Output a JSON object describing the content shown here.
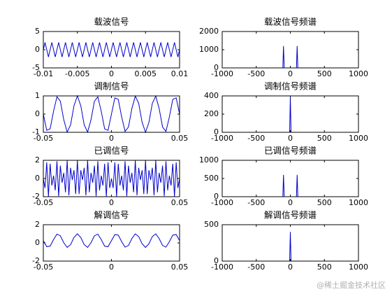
{
  "chart_data": [
    {
      "type": "line",
      "title": "载波信号",
      "color": "#0000cc",
      "xlim": [
        -0.01,
        0.01
      ],
      "xticks": [
        -0.01,
        -0.005,
        0,
        0.005,
        0.01
      ],
      "ylim": [
        -5,
        5
      ],
      "yticks": [
        -5,
        0,
        5
      ],
      "x": [
        -0.01,
        -0.00975,
        -0.0095,
        -0.00925,
        -0.009,
        -0.00875,
        -0.0085,
        -0.00825,
        -0.008,
        -0.00775,
        -0.0075,
        -0.00725,
        -0.007,
        -0.00675,
        -0.0065,
        -0.00625,
        -0.006,
        -0.00575,
        -0.0055,
        -0.00525,
        -0.005,
        -0.00475,
        -0.0045,
        -0.00425,
        -0.004,
        -0.00375,
        -0.0035,
        -0.00325,
        -0.003,
        -0.00275,
        -0.0025,
        -0.00225,
        -0.002,
        -0.00175,
        -0.0015,
        -0.00125,
        -0.001,
        -0.00075,
        -0.0005,
        -0.00025,
        0,
        0.00025,
        0.0005,
        0.00075,
        0.001,
        0.00125,
        0.0015,
        0.00175,
        0.002,
        0.00225,
        0.0025,
        0.00275,
        0.003,
        0.00325,
        0.0035,
        0.00375,
        0.004,
        0.00425,
        0.0045,
        0.00475,
        0.005,
        0.00525,
        0.0055,
        0.00575,
        0.006,
        0.00625,
        0.0065,
        0.00675,
        0.007,
        0.00725,
        0.0075,
        0.00775,
        0.008,
        0.00825,
        0.0085,
        0.00875,
        0.009,
        0.00925,
        0.0095,
        0.00975,
        0.01
      ],
      "values": [
        0,
        2,
        0,
        -2,
        0,
        2,
        0,
        -2,
        0,
        2,
        0,
        -2,
        0,
        2,
        0,
        -2,
        0,
        2,
        0,
        -2,
        0,
        2,
        0,
        -2,
        0,
        2,
        0,
        -2,
        0,
        2,
        0,
        -2,
        0,
        2,
        0,
        -2,
        0,
        2,
        0,
        -2,
        0,
        2,
        0,
        -2,
        0,
        2,
        0,
        -2,
        0,
        2,
        0,
        -2,
        0,
        2,
        0,
        -2,
        0,
        2,
        0,
        -2,
        0,
        2,
        0,
        -2,
        0,
        2,
        0,
        -2,
        0,
        2,
        0,
        -2,
        0,
        2,
        0,
        -2,
        0,
        2,
        0,
        -2,
        0
      ]
    },
    {
      "type": "line",
      "title": "载波信号频谱",
      "color": "#0000cc",
      "xlim": [
        -1000,
        1000
      ],
      "xticks": [
        -1000,
        -500,
        0,
        500,
        1000
      ],
      "ylim": [
        0,
        2000
      ],
      "yticks": [
        0,
        1000,
        2000
      ],
      "x": [
        -600,
        -110,
        -100,
        -90,
        90,
        100,
        110,
        600
      ],
      "values": [
        0,
        0,
        1200,
        0,
        0,
        1200,
        0,
        0
      ]
    },
    {
      "type": "line",
      "title": "调制信号",
      "color": "#0000cc",
      "xlim": [
        -0.05,
        0.05
      ],
      "xticks": [
        -0.05,
        0,
        0.05
      ],
      "ylim": [
        -1,
        1
      ],
      "yticks": [
        -1,
        0,
        1
      ],
      "x": [
        -0.05,
        -0.0475,
        -0.045,
        -0.0425,
        -0.04,
        -0.0375,
        -0.035,
        -0.0325,
        -0.03,
        -0.0275,
        -0.025,
        -0.0225,
        -0.02,
        -0.0175,
        -0.015,
        -0.0125,
        -0.01,
        -0.0075,
        -0.005,
        -0.0025,
        0,
        0.0025,
        0.005,
        0.0075,
        0.01,
        0.0125,
        0.015,
        0.0175,
        0.02,
        0.0225,
        0.025,
        0.0275,
        0.03,
        0.0325,
        0.035,
        0.0375,
        0.04,
        0.0425,
        0.045,
        0.0475,
        0.05
      ],
      "values": [
        0,
        -0.891,
        -0.809,
        0.156,
        0.951,
        0.707,
        -0.309,
        -0.988,
        -0.588,
        0.454,
        1,
        0.454,
        -0.588,
        -0.988,
        -0.309,
        0.707,
        0.951,
        0.156,
        -0.809,
        -0.891,
        0,
        0.891,
        0.809,
        -0.156,
        -0.951,
        -0.707,
        0.309,
        0.988,
        0.588,
        -0.454,
        -1,
        -0.454,
        0.588,
        0.988,
        0.309,
        -0.707,
        -0.951,
        -0.156,
        0.809,
        0.891,
        0
      ]
    },
    {
      "type": "line",
      "title": "调制信号频谱",
      "color": "#0000cc",
      "xlim": [
        -1000,
        1000
      ],
      "xticks": [
        -1000,
        -500,
        0,
        500,
        1000
      ],
      "ylim": [
        0,
        400
      ],
      "yticks": [
        0,
        200,
        400
      ],
      "x": [
        -600,
        -10,
        0,
        10,
        600
      ],
      "values": [
        0,
        0,
        390,
        0,
        0
      ]
    },
    {
      "type": "line",
      "title": "已调信号",
      "color": "#0000cc",
      "xlim": [
        -0.05,
        0.05
      ],
      "xticks": [
        -0.05,
        0,
        0.05
      ],
      "ylim": [
        -2,
        2
      ],
      "yticks": [
        -2,
        0,
        2
      ],
      "x": [
        -0.05,
        -0.04875,
        -0.0475,
        -0.04625,
        -0.045,
        -0.04375,
        -0.0425,
        -0.04125,
        -0.04,
        -0.03875,
        -0.0375,
        -0.03625,
        -0.035,
        -0.03375,
        -0.0325,
        -0.03125,
        -0.03,
        -0.02875,
        -0.0275,
        -0.02625,
        -0.025,
        -0.02375,
        -0.0225,
        -0.02125,
        -0.02,
        -0.01875,
        -0.0175,
        -0.01625,
        -0.015,
        -0.01375,
        -0.0125,
        -0.01125,
        -0.01,
        -0.00875,
        -0.0075,
        -0.00625,
        -0.005,
        -0.00375,
        -0.0025,
        -0.00125,
        0,
        0.00125,
        0.0025,
        0.00375,
        0.005,
        0.00625,
        0.0075,
        0.00875,
        0.01,
        0.01125,
        0.0125,
        0.01375,
        0.015,
        0.01625,
        0.0175,
        0.01875,
        0.02,
        0.02125,
        0.0225,
        0.02375,
        0.025,
        0.02625,
        0.0275,
        0.02875,
        0.03,
        0.03125,
        0.0325,
        0.03375,
        0.035,
        0.03625,
        0.0375,
        0.03875,
        0.04,
        0.04125,
        0.0425,
        0.04375,
        0.045,
        0.04625,
        0.0475,
        0.04875,
        0.05
      ],
      "values": [
        0,
        -1.04,
        1.78,
        -1.99,
        1.62,
        -0.77,
        0.31,
        -1.3,
        1.9,
        -1.94,
        1.41,
        -0.47,
        0.62,
        -1.52,
        1.98,
        -1.85,
        1.18,
        -0.16,
        0.91,
        -1.71,
        2,
        -1.71,
        0.91,
        -0.16,
        1.18,
        -1.85,
        1.98,
        -1.52,
        0.62,
        -0.47,
        1.41,
        -1.94,
        1.9,
        -1.3,
        0.31,
        -0.77,
        1.62,
        -1.99,
        1.78,
        -1.04,
        0,
        -1.04,
        1.78,
        -1.99,
        1.62,
        -0.77,
        0.31,
        -1.3,
        1.9,
        -1.94,
        1.41,
        -0.47,
        0.62,
        -1.52,
        1.98,
        -1.85,
        1.18,
        -0.16,
        0.91,
        -1.71,
        2,
        -1.71,
        0.91,
        -0.16,
        1.18,
        -1.85,
        1.98,
        -1.52,
        0.62,
        -0.47,
        1.41,
        -1.94,
        1.9,
        -1.3,
        0.31,
        -0.77,
        1.62,
        -1.99,
        1.78,
        -1.04,
        0
      ]
    },
    {
      "type": "line",
      "title": "已调信号频谱",
      "color": "#0000cc",
      "xlim": [
        -1000,
        1000
      ],
      "xticks": [
        -1000,
        -500,
        0,
        500,
        1000
      ],
      "ylim": [
        0,
        1000
      ],
      "yticks": [
        0,
        500,
        1000
      ],
      "x": [
        -600,
        -110,
        -100,
        -90,
        90,
        100,
        110,
        600
      ],
      "values": [
        0,
        0,
        600,
        0,
        0,
        600,
        0,
        0
      ]
    },
    {
      "type": "line",
      "title": "解调信号",
      "color": "#0000cc",
      "xlim": [
        -0.05,
        0.05
      ],
      "xticks": [
        -0.05,
        0,
        0.05
      ],
      "ylim": [
        -2,
        2
      ],
      "yticks": [
        -2,
        0,
        2
      ],
      "x": [
        -0.05,
        -0.0475,
        -0.045,
        -0.0425,
        -0.04,
        -0.0375,
        -0.035,
        -0.0325,
        -0.03,
        -0.0275,
        -0.025,
        -0.0225,
        -0.02,
        -0.0175,
        -0.015,
        -0.0125,
        -0.01,
        -0.0075,
        -0.005,
        -0.0025,
        0,
        0.0025,
        0.005,
        0.0075,
        0.01,
        0.0125,
        0.015,
        0.0175,
        0.02,
        0.0225,
        0.025,
        0.0275,
        0.03,
        0.0325,
        0.035,
        0.0375,
        0.04,
        0.0425,
        0.045,
        0.0475,
        0.05
      ],
      "values": [
        0.25,
        -0.418,
        -0.357,
        0.367,
        0.963,
        0.78,
        0.018,
        -0.491,
        -0.191,
        0.591,
        1,
        0.591,
        -0.191,
        -0.491,
        0.018,
        0.78,
        0.963,
        0.367,
        -0.357,
        -0.418,
        0.25,
        0.918,
        0.857,
        0.133,
        -0.463,
        -0.28,
        0.482,
        0.991,
        0.691,
        -0.091,
        -0.5,
        -0.091,
        0.691,
        0.991,
        0.482,
        -0.28,
        -0.463,
        0.133,
        0.857,
        0.918,
        0.25
      ]
    },
    {
      "type": "line",
      "title": "解调信号频谱",
      "color": "#0000cc",
      "xlim": [
        -1000,
        1000
      ],
      "xticks": [
        -1000,
        -500,
        0,
        500,
        1000
      ],
      "ylim": [
        0,
        500
      ],
      "yticks": [
        0,
        500
      ],
      "x": [
        -600,
        -10,
        0,
        10,
        600
      ],
      "values": [
        0,
        0,
        400,
        0,
        0
      ]
    }
  ],
  "watermark": "@稀土掘金技术社区"
}
